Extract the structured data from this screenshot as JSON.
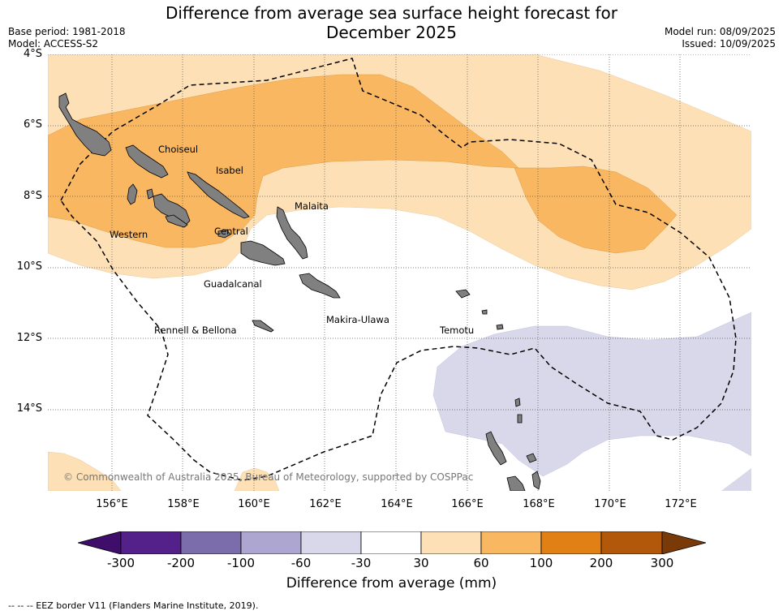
{
  "title_line1": "Difference from average sea surface height forecast for",
  "title_line2": "December 2025",
  "meta": {
    "base_period": "Base period: 1981-2018",
    "model": "Model: ACCESS-S2",
    "model_run": "Model run: 08/09/2025",
    "issued": "Issued: 10/09/2025"
  },
  "lat_labels": [
    "4°S",
    "6°S",
    "8°S",
    "10°S",
    "12°S",
    "14°S"
  ],
  "lon_labels": [
    "156°E",
    "158°E",
    "160°E",
    "162°E",
    "164°E",
    "166°E",
    "168°E",
    "170°E",
    "172°E"
  ],
  "regions": {
    "choiseul": "Choiseul",
    "isabel": "Isabel",
    "malaita": "Malaita",
    "western": "Western",
    "central": "Central",
    "guadalcanal": "Guadalcanal",
    "makira_ulawa": "Makira-Ulawa",
    "rennell_bellona": "Rennell & Bellona",
    "temotu": "Temotu"
  },
  "copyright": "© Commonwealth of Australia 2025, Bureau of Meteorology, supported by COSPPac",
  "colorbar": {
    "ticks": [
      "-300",
      "-200",
      "-100",
      "-60",
      "-30",
      "30",
      "60",
      "100",
      "200",
      "300"
    ],
    "colors": [
      "#3f0e6b",
      "#54218a",
      "#7b6dab",
      "#ada6d0",
      "#d8d8ea",
      "#ffffff",
      "#fde0b6",
      "#f9b761",
      "#e08015",
      "#b2580a",
      "#7a3a08"
    ],
    "label": "Difference from average (mm)"
  },
  "footnote": "--  --  -- EEZ border V11 (Flanders Marine Institute, 2019).",
  "colors": {
    "land": "#808080",
    "light_orange": "#fde0b6",
    "medium_orange": "#f9b761",
    "light_purple": "#d8d8ea"
  }
}
